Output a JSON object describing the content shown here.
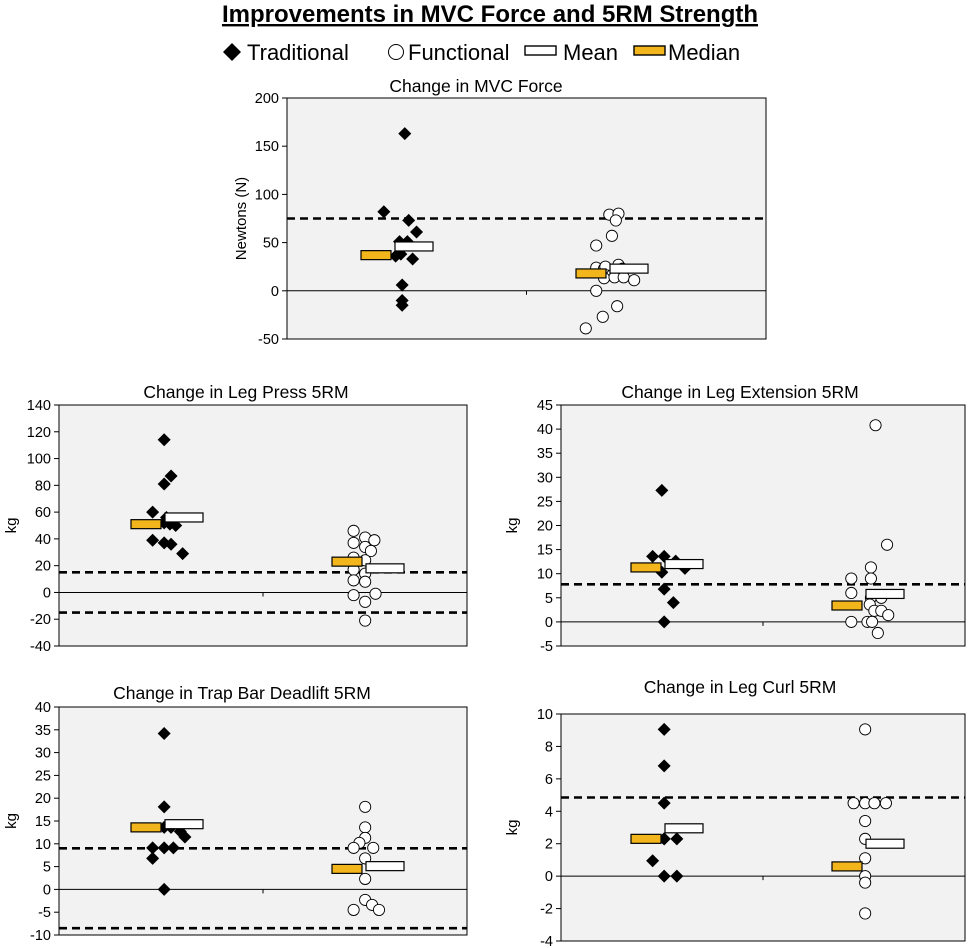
{
  "figure_title": "Improvements in MVC Force and 5RM Strength",
  "legend": {
    "traditional": "Traditional",
    "functional": "Functional",
    "mean": "Mean",
    "median": "Median"
  },
  "colors": {
    "median_fill": "#f2b51c",
    "mean_fill": "#ffffff",
    "panel_background": "#f2f2f2",
    "marker": "#000000"
  },
  "chart_data": [
    {
      "id": "mvc",
      "type": "scatter",
      "title": "Change in MVC Force",
      "ylabel": "Newtons (N)",
      "ylim": [
        -50,
        200
      ],
      "yticks": [
        200,
        150,
        100,
        50,
        0,
        -50
      ],
      "thresholds": [
        75
      ],
      "groups": [
        {
          "name": "Traditional",
          "marker": "diamond",
          "points": [
            [
              -0.35,
              82
            ],
            [
              0.45,
              163
            ],
            [
              0.6,
              73
            ],
            [
              0.25,
              51
            ],
            [
              0.55,
              51
            ],
            [
              0.9,
              61
            ],
            [
              0.1,
              36
            ],
            [
              0.3,
              38
            ],
            [
              0.75,
              33
            ],
            [
              0.35,
              6
            ],
            [
              0.35,
              -10
            ],
            [
              0.35,
              -15
            ]
          ],
          "median": 37,
          "mean": 46
        },
        {
          "name": "Functional",
          "marker": "circle",
          "points": [
            [
              0.05,
              79
            ],
            [
              0.4,
              80
            ],
            [
              0.3,
              73
            ],
            [
              0.15,
              57
            ],
            [
              -0.45,
              47
            ],
            [
              -0.45,
              24
            ],
            [
              -0.15,
              23
            ],
            [
              -0.1,
              25
            ],
            [
              0.4,
              27
            ],
            [
              0.55,
              23
            ],
            [
              -0.05,
              16
            ],
            [
              0.15,
              16
            ],
            [
              -0.15,
              13
            ],
            [
              0.25,
              14
            ],
            [
              0.6,
              14
            ],
            [
              1.0,
              11
            ],
            [
              -0.45,
              0
            ],
            [
              0.35,
              -16
            ],
            [
              -0.2,
              -27
            ],
            [
              -0.85,
              -39
            ]
          ],
          "median": 18,
          "mean": 23
        }
      ]
    },
    {
      "id": "legpress",
      "type": "scatter",
      "title": "Change in Leg Press 5RM",
      "ylabel": "kg",
      "ylim": [
        -40,
        140
      ],
      "yticks": [
        140,
        120,
        100,
        80,
        60,
        40,
        20,
        0,
        -20,
        -40
      ],
      "thresholds": [
        15,
        -15
      ],
      "groups": [
        {
          "name": "Traditional",
          "marker": "diamond",
          "points": [
            [
              0.05,
              114
            ],
            [
              0.35,
              87
            ],
            [
              0.05,
              81
            ],
            [
              -0.45,
              60
            ],
            [
              0.15,
              56
            ],
            [
              0.05,
              52
            ],
            [
              0.3,
              51
            ],
            [
              0.55,
              50
            ],
            [
              -0.45,
              39
            ],
            [
              0.05,
              37
            ],
            [
              0.35,
              36
            ],
            [
              0.85,
              29
            ]
          ],
          "median": 51,
          "mean": 56
        },
        {
          "name": "Functional",
          "marker": "circle",
          "points": [
            [
              -0.45,
              46
            ],
            [
              0.05,
              41
            ],
            [
              0.45,
              39
            ],
            [
              -0.45,
              37
            ],
            [
              0.05,
              34
            ],
            [
              0.3,
              31
            ],
            [
              -0.45,
              26
            ],
            [
              0.05,
              24
            ],
            [
              -0.45,
              17
            ],
            [
              0.05,
              14
            ],
            [
              -0.45,
              9
            ],
            [
              0.05,
              8
            ],
            [
              -0.45,
              -2
            ],
            [
              0.5,
              -1
            ],
            [
              0.05,
              -7
            ],
            [
              0.05,
              -21
            ]
          ],
          "median": 23,
          "mean": 18
        }
      ]
    },
    {
      "id": "legext",
      "type": "scatter",
      "title": "Change in Leg Extension 5RM",
      "ylabel": "kg",
      "ylim": [
        -5,
        45
      ],
      "yticks": [
        45,
        40,
        35,
        30,
        25,
        20,
        15,
        10,
        5,
        0,
        -5
      ],
      "thresholds": [
        7.8
      ],
      "groups": [
        {
          "name": "Traditional",
          "marker": "diamond",
          "points": [
            [
              -0.05,
              27.3
            ],
            [
              -0.45,
              13.6
            ],
            [
              0.05,
              13.6
            ],
            [
              0.55,
              12.6
            ],
            [
              0.95,
              11.1
            ],
            [
              -0.05,
              10.3
            ],
            [
              0.05,
              6.8
            ],
            [
              0.45,
              4
            ],
            [
              0.05,
              0
            ]
          ],
          "median": 11.3,
          "mean": 12
        },
        {
          "name": "Functional",
          "marker": "circle",
          "points": [
            [
              0.5,
              40.8
            ],
            [
              1.0,
              16
            ],
            [
              0.3,
              11.3
            ],
            [
              -0.55,
              9
            ],
            [
              0.3,
              9
            ],
            [
              -0.55,
              6
            ],
            [
              0.3,
              5
            ],
            [
              0.75,
              5
            ],
            [
              0.25,
              3.6
            ],
            [
              0.45,
              2.3
            ],
            [
              0.75,
              2.3
            ],
            [
              1.05,
              1.4
            ],
            [
              0.15,
              0
            ],
            [
              -0.55,
              0
            ],
            [
              0.35,
              0
            ],
            [
              0.6,
              -2.3
            ]
          ],
          "median": 3.4,
          "mean": 5.8
        }
      ]
    },
    {
      "id": "trapbar",
      "type": "scatter",
      "title": "Change in Trap Bar Deadlift 5RM",
      "ylabel": "kg",
      "ylim": [
        -10,
        40
      ],
      "yticks": [
        40,
        35,
        30,
        25,
        20,
        15,
        10,
        5,
        0,
        -5,
        -10
      ],
      "thresholds": [
        9,
        -8.5
      ],
      "groups": [
        {
          "name": "Traditional",
          "marker": "diamond",
          "points": [
            [
              0.05,
              34.2
            ],
            [
              0.05,
              18.1
            ],
            [
              0.35,
              13.6
            ],
            [
              0.75,
              12.7
            ],
            [
              0.05,
              13.6
            ],
            [
              0.95,
              11.5
            ],
            [
              -0.45,
              9.1
            ],
            [
              0.45,
              9.1
            ],
            [
              0.05,
              9.1
            ],
            [
              -0.45,
              6.8
            ],
            [
              0.05,
              0
            ]
          ],
          "median": 13.6,
          "mean": 14.3
        },
        {
          "name": "Functional",
          "marker": "circle",
          "points": [
            [
              0.05,
              18.1
            ],
            [
              0.05,
              13.6
            ],
            [
              0.05,
              11.3
            ],
            [
              -0.2,
              10.2
            ],
            [
              0.4,
              9.1
            ],
            [
              -0.45,
              9.1
            ],
            [
              0.05,
              6.8
            ],
            [
              0.05,
              2.3
            ],
            [
              0.05,
              -2.3
            ],
            [
              0.35,
              -3.4
            ],
            [
              -0.45,
              -4.5
            ],
            [
              0.65,
              -4.5
            ]
          ],
          "median": 4.5,
          "mean": 5.1
        }
      ]
    },
    {
      "id": "legcurl",
      "type": "scatter",
      "title": "Change in Leg Curl 5RM",
      "ylabel": "kg",
      "ylim": [
        -4,
        10
      ],
      "yticks": [
        10,
        8,
        6,
        4,
        2,
        0,
        -2,
        -4
      ],
      "thresholds": [
        4.85
      ],
      "groups": [
        {
          "name": "Traditional",
          "marker": "diamond",
          "points": [
            [
              0.05,
              9.05
            ],
            [
              0.05,
              6.8
            ],
            [
              0.05,
              4.5
            ],
            [
              0.05,
              2.3
            ],
            [
              0.05,
              2.3
            ],
            [
              0.6,
              2.3
            ],
            [
              -0.45,
              0.95
            ],
            [
              0.05,
              0
            ],
            [
              0.6,
              0
            ]
          ],
          "median": 2.3,
          "mean": 2.95
        },
        {
          "name": "Functional",
          "marker": "circle",
          "points": [
            [
              0.05,
              9.05
            ],
            [
              -0.45,
              4.5
            ],
            [
              0.05,
              4.5
            ],
            [
              0.45,
              4.5
            ],
            [
              0.95,
              4.5
            ],
            [
              0.05,
              3.4
            ],
            [
              0.05,
              2.3
            ],
            [
              0.05,
              1.1
            ],
            [
              0.05,
              0
            ],
            [
              0.05,
              -0.4
            ],
            [
              0.05,
              -2.3
            ]
          ],
          "median": 0.6,
          "mean": 2
        }
      ]
    }
  ]
}
